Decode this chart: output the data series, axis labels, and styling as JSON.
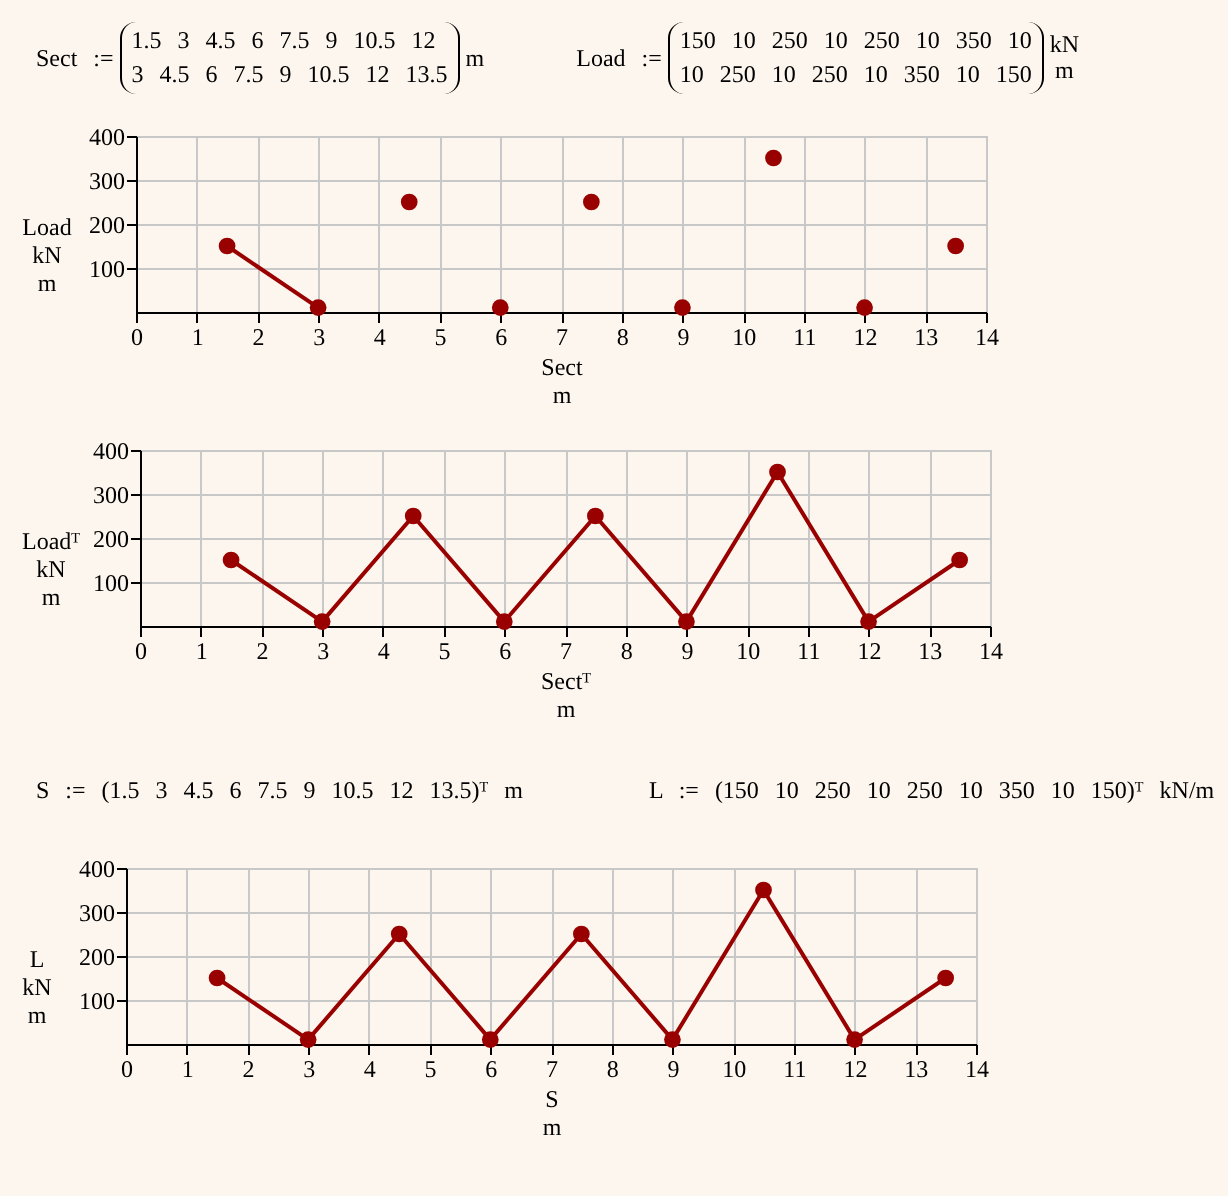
{
  "chart_data": [
    {
      "type": "scatter",
      "ylabel": "Load\nkN\nm",
      "xlabel": "Sect\nm",
      "xlim": [
        0,
        14
      ],
      "xticks": [
        0,
        1,
        2,
        3,
        4,
        5,
        6,
        7,
        8,
        9,
        10,
        11,
        12,
        13,
        14
      ],
      "ylim": [
        0,
        400
      ],
      "yticks": [
        100,
        200,
        300,
        400
      ],
      "grid": true,
      "marker": "circle",
      "annotations": [
        "Sect :=",
        "1.5 3 4.5 6 7.5 9 10.5 12",
        "3 4.5 6 7.5 9 10.5 12 13.5",
        "m",
        "Load :=",
        "150 10 250 10 250 10 350 10",
        "10 250 10 250 10 350 10 150",
        "kN\nm"
      ],
      "series": [
        {
          "type": "line",
          "color": "#990000",
          "x": [
            1.5,
            3
          ],
          "values": [
            150,
            10
          ]
        },
        {
          "color": "#990000",
          "x": [
            4.5,
            6,
            7.5,
            9,
            10.5,
            12,
            13.5
          ],
          "values": [
            250,
            10,
            250,
            10,
            350,
            10,
            150
          ]
        }
      ]
    },
    {
      "type": "line",
      "ylabel": "Loadᵀ\nkN\nm",
      "xlabel": "Sectᵀ\nm",
      "xlim": [
        0,
        14
      ],
      "xticks": [
        0,
        1,
        2,
        3,
        4,
        5,
        6,
        7,
        8,
        9,
        10,
        11,
        12,
        13,
        14
      ],
      "ylim": [
        0,
        400
      ],
      "yticks": [
        100,
        200,
        300,
        400
      ],
      "grid": true,
      "marker": "circle",
      "series": [
        {
          "color": "#990000",
          "x": [
            1.5,
            3,
            4.5,
            6,
            7.5,
            9,
            10.5,
            12,
            13.5
          ],
          "values": [
            150,
            10,
            250,
            10,
            250,
            10,
            350,
            10,
            150
          ]
        }
      ]
    },
    {
      "type": "line",
      "ylabel": "L\nkN\nm",
      "xlabel": "S\nm",
      "xlim": [
        0,
        14
      ],
      "xticks": [
        0,
        1,
        2,
        3,
        4,
        5,
        6,
        7,
        8,
        9,
        10,
        11,
        12,
        13,
        14
      ],
      "ylim": [
        0,
        400
      ],
      "yticks": [
        100,
        200,
        300,
        400
      ],
      "grid": true,
      "marker": "circle",
      "annotations": [
        "S := (1.5 3 4.5 6 7.5 9 10.5 12 13.5)ᵀ m",
        "L := (150 10 250 10 250 10 350 10 150)ᵀ kN/m"
      ],
      "series": [
        {
          "color": "#990000",
          "x": [
            1.5,
            3,
            4.5,
            6,
            7.5,
            9,
            10.5,
            12,
            13.5
          ],
          "values": [
            150,
            10,
            250,
            10,
            250,
            10,
            350,
            10,
            150
          ]
        }
      ]
    }
  ]
}
